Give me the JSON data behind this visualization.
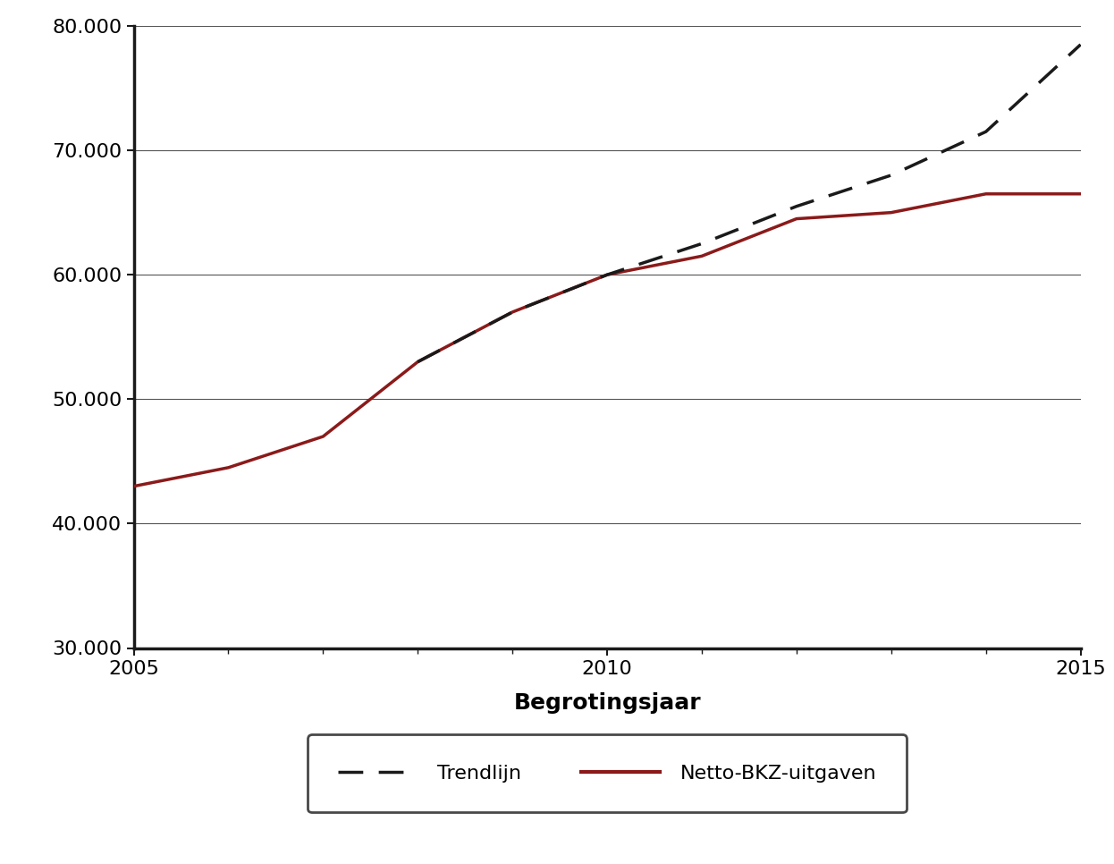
{
  "netto_x": [
    2005,
    2006,
    2007,
    2008,
    2009,
    2010,
    2011,
    2012,
    2013,
    2014,
    2015
  ],
  "netto_y": [
    43000,
    44500,
    47000,
    53000,
    57000,
    60000,
    61500,
    64500,
    65000,
    66500,
    66500
  ],
  "trend_x": [
    2008,
    2009,
    2010,
    2011,
    2012,
    2013,
    2014,
    2015
  ],
  "trend_y": [
    53000,
    57000,
    60000,
    62500,
    65500,
    68000,
    71500,
    78500
  ],
  "netto_color": "#8B1A1A",
  "trend_color": "#1a1a1a",
  "xlabel": "Begrotingsjaar",
  "ylim": [
    30000,
    80000
  ],
  "xlim": [
    2005,
    2015
  ],
  "yticks": [
    30000,
    40000,
    50000,
    60000,
    70000,
    80000
  ],
  "ytick_labels": [
    "30.000",
    "40.000",
    "50.000",
    "60.000",
    "70.000",
    "80.000"
  ],
  "xticks_major": [
    2005,
    2010,
    2015
  ],
  "xticks_minor": [
    2005,
    2006,
    2007,
    2008,
    2009,
    2010,
    2011,
    2012,
    2013,
    2014,
    2015
  ],
  "legend_trendlijn": "Trendlijn",
  "legend_netto": "Netto-BKZ-uitgaven",
  "background_color": "#ffffff",
  "grid_color": "#555555",
  "spine_color": "#1a1a1a"
}
